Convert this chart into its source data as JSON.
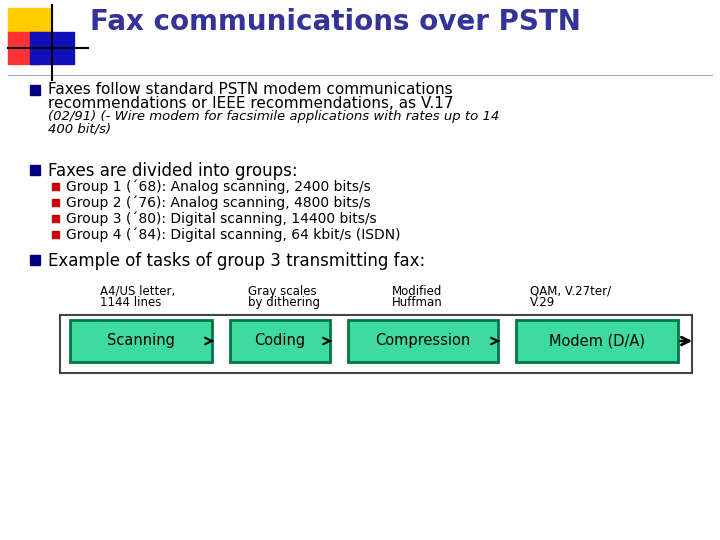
{
  "title": "Fax communications over PSTN",
  "title_color": "#333399",
  "bg_color": "#ffffff",
  "bullet_color": "#000080",
  "sub_bullet_color": "#cc0000",
  "bullet1_line1": "Faxes follow standard PSTN modem communications",
  "bullet1_line2": "recommendations or IEEE recommendations, as V.17",
  "bullet1_italic1": "(02/91) (- Wire modem for facsimile applications with rates up to 14",
  "bullet1_italic2": "400 bit/s)",
  "bullet2": "Faxes are divided into groups:",
  "sub_bullets": [
    "Group 1 (´68): Analog scanning, 2400 bits/s",
    "Group 2 (´76): Analog scanning, 4800 bits/s",
    "Group 3 (´80): Digital scanning, 14400 bits/s",
    "Group 4 (´84): Digital scanning, 64 kbit/s (ISDN)"
  ],
  "bullet3": "Example of tasks of group 3 transmitting fax:",
  "box_labels": [
    "Scanning",
    "Coding",
    "Compression",
    "Modem (D/A)"
  ],
  "box_color": "#3ddba0",
  "box_border_color": "#007744",
  "above_box_col1": [
    "A4/US letter,",
    "1144 lines"
  ],
  "above_box_col2": [
    "Gray scales",
    "by dithering"
  ],
  "above_box_col3": [
    "Modified",
    "Huffman"
  ],
  "above_box_col4": [
    "QAM, V.27ter/",
    "V.29"
  ],
  "arrow_color": "#000000",
  "logo_yellow": "#ffcc00",
  "logo_red": "#ff3333",
  "logo_blue": "#1111bb",
  "outer_rect_color": "#444444",
  "font_main": "DejaVu Sans",
  "font_size_title": 20,
  "font_size_bullet": 11,
  "font_size_sub": 10,
  "font_size_italic": 9.5,
  "font_size_box": 10.5,
  "font_size_above": 8.5
}
